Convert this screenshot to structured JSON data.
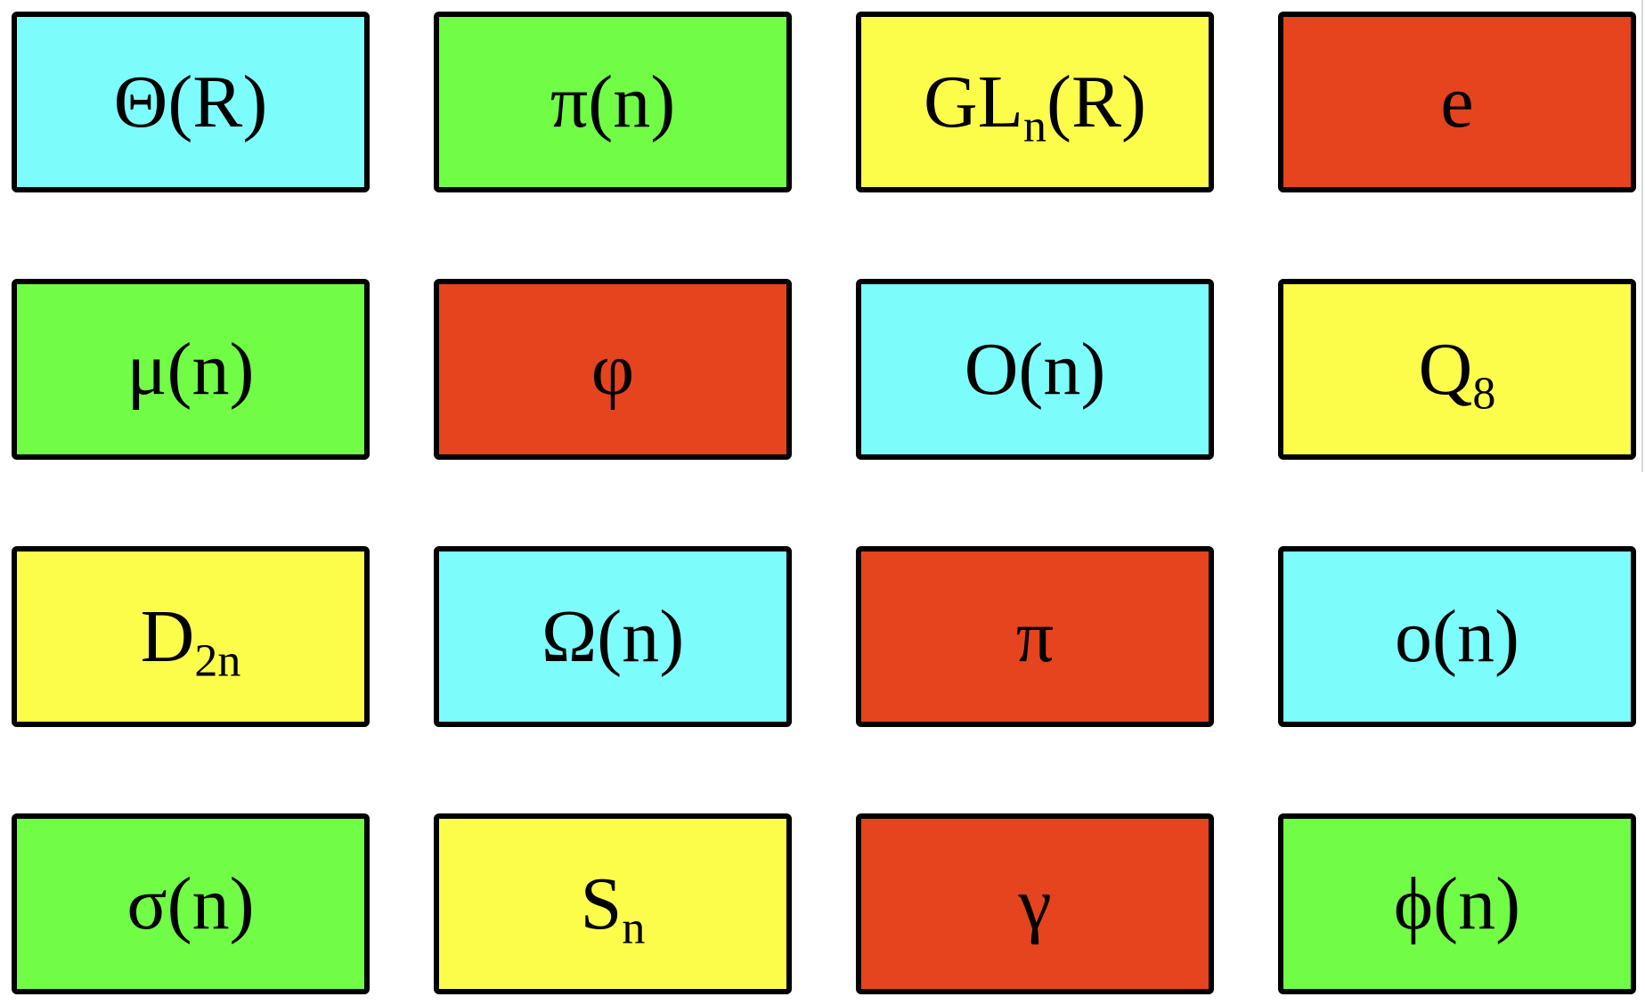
{
  "colors": {
    "cyan": "#7dfcfc",
    "green": "#71fc46",
    "yellow": "#fcfc4b",
    "red": "#e6431f",
    "border": "#000000"
  },
  "tiles": [
    {
      "color": "cyan",
      "main": "Θ(R)",
      "sub": "",
      "tail": ""
    },
    {
      "color": "green",
      "main": "π(n)",
      "sub": "",
      "tail": ""
    },
    {
      "color": "yellow",
      "main": "GL",
      "sub": "n",
      "tail": "(R)"
    },
    {
      "color": "red",
      "main": "e",
      "sub": "",
      "tail": ""
    },
    {
      "color": "green",
      "main": "μ(n)",
      "sub": "",
      "tail": ""
    },
    {
      "color": "red",
      "main": "φ",
      "sub": "",
      "tail": ""
    },
    {
      "color": "cyan",
      "main": "O(n)",
      "sub": "",
      "tail": ""
    },
    {
      "color": "yellow",
      "main": "Q",
      "sub": "8",
      "tail": ""
    },
    {
      "color": "yellow",
      "main": "D",
      "sub": "2n",
      "tail": ""
    },
    {
      "color": "cyan",
      "main": "Ω(n)",
      "sub": "",
      "tail": ""
    },
    {
      "color": "red",
      "main": "π",
      "sub": "",
      "tail": ""
    },
    {
      "color": "cyan",
      "main": "o(n)",
      "sub": "",
      "tail": ""
    },
    {
      "color": "green",
      "main": "σ(n)",
      "sub": "",
      "tail": ""
    },
    {
      "color": "yellow",
      "main": "S",
      "sub": "n",
      "tail": ""
    },
    {
      "color": "red",
      "main": "γ",
      "sub": "",
      "tail": ""
    },
    {
      "color": "green",
      "main": "ϕ(n)",
      "sub": "",
      "tail": ""
    }
  ]
}
